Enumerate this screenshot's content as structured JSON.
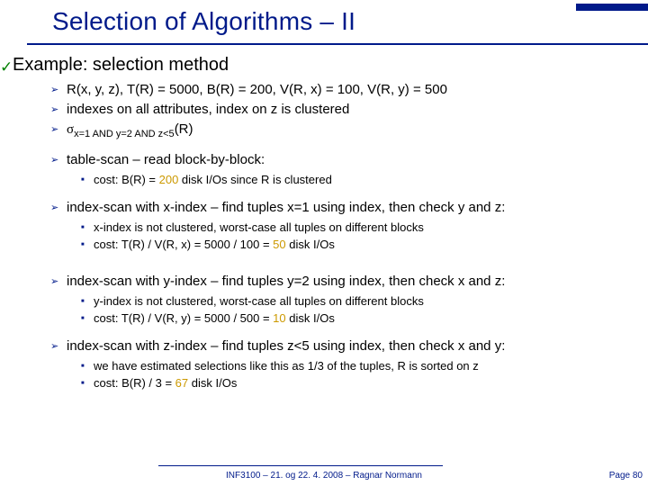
{
  "title": "Selection of Algorithms – II",
  "example_label": "Example: selection method",
  "bullets": {
    "b1": "R(x, y, z), T(R) = 5000, B(R) = 200, V(R, x) = 100, V(R, y) = 500",
    "b2": "indexes on all attributes, index on z is clustered",
    "b3_pre": "σ",
    "b3_sub": "x=1 AND y=2 AND z<5",
    "b3_post": "(R)",
    "b4": "table-scan – read block-by-block:",
    "b4_1a": "cost: B(R) = ",
    "b4_1b": "200",
    "b4_1c": " disk I/Os since R is clustered",
    "b5": "index-scan with x-index – find tuples x=1 using index, then check y and z:",
    "b5_1": "x-index is not clustered, worst-case all tuples on different blocks",
    "b5_2a": "cost: T(R) / V(R, x) = 5000 / 100 = ",
    "b5_2b": "50",
    "b5_2c": " disk I/Os",
    "b6": "index-scan with y-index – find tuples y=2 using index, then check x and z:",
    "b6_1": "y-index is not clustered, worst-case all tuples on different blocks",
    "b6_2a": "cost: T(R) / V(R, y) = 5000 / 500 = ",
    "b6_2b": "10",
    "b6_2c": " disk I/Os",
    "b7": "index-scan with z-index – find tuples z<5 using index, then check x and y:",
    "b7_1": "we have estimated selections like this as 1/3 of the tuples, R is sorted on z",
    "b7_2a": "cost: B(R) / 3 = ",
    "b7_2b": "67",
    "b7_2c": " disk I/Os"
  },
  "footer_text": "INF3100 – 21. og 22. 4. 2008 – Ragnar Normann",
  "page_num": "Page 80",
  "colors": {
    "brand": "#001a8a",
    "accent": "#cc9900",
    "check": "#008000"
  }
}
